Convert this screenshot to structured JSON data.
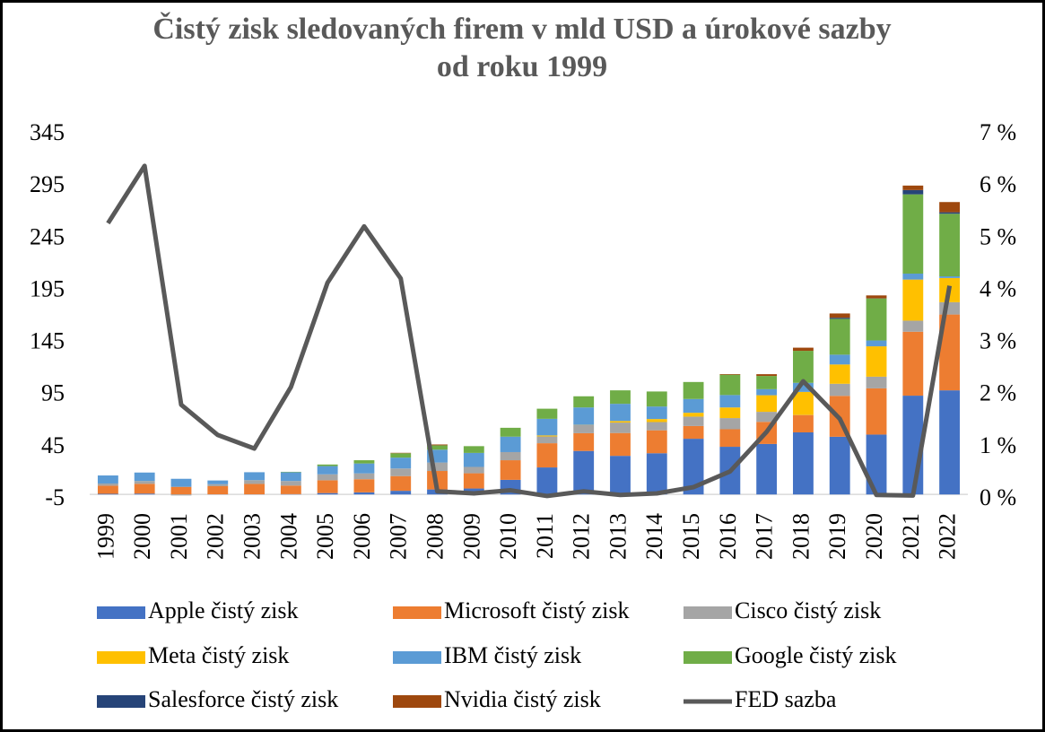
{
  "chart_data": {
    "type": "bar",
    "title": "Čistý zisk sledovaných firem v mld USD a úrokové sazby od roku 1999",
    "stacked": true,
    "categories": [
      "1999",
      "2000",
      "2001",
      "2002",
      "2003",
      "2004",
      "2005",
      "2006",
      "2007",
      "2008",
      "2009",
      "2010",
      "2011",
      "2012",
      "2013",
      "2014",
      "2015",
      "2016",
      "2017",
      "2018",
      "2019",
      "2020",
      "2021",
      "2022"
    ],
    "series": [
      {
        "name": "Apple čistý zisk",
        "color": "#4472c4",
        "values": [
          0.6,
          0.8,
          0,
          0.1,
          0.1,
          0.3,
          1.3,
          2.0,
          3.5,
          4.8,
          5.7,
          14.0,
          25.9,
          41.7,
          37.0,
          39.5,
          53.4,
          45.7,
          48.4,
          59.5,
          55.3,
          57.4,
          94.7,
          99.8
        ]
      },
      {
        "name": "Microsoft čistý zisk",
        "color": "#ed7d31",
        "values": [
          7.8,
          9.4,
          7.3,
          7.8,
          10.0,
          8.2,
          12.3,
          12.6,
          14.1,
          17.7,
          14.6,
          18.8,
          23.2,
          17.0,
          21.9,
          22.0,
          12.2,
          16.8,
          21.2,
          16.6,
          39.2,
          44.3,
          61.3,
          72.7
        ]
      },
      {
        "name": "Cisco čistý zisk",
        "color": "#a5a5a5",
        "values": [
          2.1,
          2.7,
          -1.0,
          1.9,
          3.6,
          4.4,
          5.7,
          5.6,
          7.3,
          8.1,
          6.1,
          7.8,
          6.5,
          8.0,
          10.0,
          7.9,
          9.0,
          10.7,
          9.6,
          0.1,
          11.6,
          11.2,
          10.6,
          11.8
        ]
      },
      {
        "name": "Meta čistý zisk",
        "color": "#ffc000",
        "values": [
          0,
          0,
          0,
          0,
          0,
          0,
          0,
          0,
          0,
          0,
          0,
          0,
          1.0,
          0.1,
          1.5,
          2.9,
          3.7,
          10.2,
          15.9,
          22.1,
          18.5,
          29.1,
          39.4,
          23.2
        ]
      },
      {
        "name": "IBM čistý zisk",
        "color": "#5b9bd5",
        "values": [
          7.7,
          8.1,
          7.7,
          3.6,
          7.6,
          8.4,
          7.9,
          9.5,
          10.4,
          12.3,
          13.4,
          14.8,
          15.9,
          16.6,
          16.5,
          12.0,
          13.2,
          11.9,
          5.8,
          8.7,
          9.4,
          5.6,
          5.7,
          1.6
        ]
      },
      {
        "name": "Google čistý zisk",
        "color": "#70ad47",
        "values": [
          0,
          0,
          0,
          0,
          0,
          0.4,
          1.5,
          3.1,
          4.2,
          4.2,
          6.5,
          8.5,
          9.7,
          10.7,
          12.9,
          14.4,
          16.3,
          19.5,
          12.7,
          30.7,
          34.3,
          40.3,
          76.0,
          60.0
        ]
      },
      {
        "name": "Salesforce čistý zisk",
        "color": "#264478",
        "values": [
          0,
          0,
          0,
          0,
          0,
          0,
          0,
          0,
          0,
          0,
          0,
          0,
          0,
          0,
          0,
          0,
          0,
          0,
          0,
          0,
          1.1,
          0.1,
          4.1,
          1.4
        ]
      },
      {
        "name": "Nvidia čistý zisk",
        "color": "#9e480e",
        "values": [
          0,
          0,
          0,
          0,
          0,
          0,
          0,
          0,
          0.4,
          0.8,
          0,
          0,
          0,
          0,
          0,
          0,
          0,
          0.6,
          1.7,
          3.0,
          4.1,
          2.8,
          4.3,
          9.8
        ]
      },
      {
        "name": "FED sazba",
        "color": "#595959",
        "type": "line",
        "axis": "y2",
        "values": [
          5.3,
          6.4,
          1.82,
          1.24,
          0.98,
          2.16,
          4.16,
          5.24,
          4.24,
          0.16,
          0.12,
          0.18,
          0.07,
          0.16,
          0.09,
          0.12,
          0.24,
          0.54,
          1.3,
          2.27,
          1.55,
          0.09,
          0.08,
          4.1
        ]
      }
    ],
    "ylim": [
      -5,
      345
    ],
    "yticks": [
      -5,
      45,
      95,
      145,
      195,
      245,
      295,
      345
    ],
    "y2lim": [
      0,
      7
    ],
    "y2ticks": [
      {
        "value": 0,
        "label": "0 %"
      },
      {
        "value": 1,
        "label": "1 %"
      },
      {
        "value": 2,
        "label": "2 %"
      },
      {
        "value": 3,
        "label": "3 %"
      },
      {
        "value": 4,
        "label": "4 %"
      },
      {
        "value": 5,
        "label": "5 %"
      },
      {
        "value": 6,
        "label": "6 %"
      },
      {
        "value": 7,
        "label": "7 %"
      }
    ],
    "grid": false,
    "legend": "bottom"
  }
}
